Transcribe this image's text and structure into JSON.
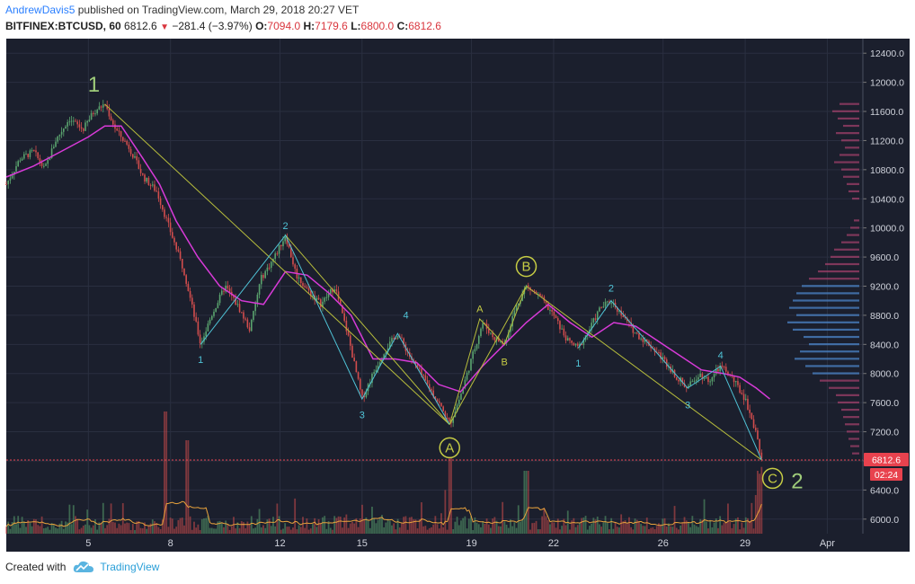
{
  "header": {
    "author": "AndrewDavis5",
    "published_text": "published on TradingView.com, March 29, 2018 20:27 VET",
    "symbol": "BITFINEX:BTCUSD, 60",
    "last": "6812.6",
    "change": "−281.4 (−3.97%)",
    "o_label": "O:",
    "o_value": "7094.0",
    "h_label": "H:",
    "h_value": "7179.6",
    "l_label": "L:",
    "l_value": "6800.0",
    "c_label": "C:",
    "c_value": "6812.6"
  },
  "footer": {
    "created_with": "Created with",
    "brand": "TradingView"
  },
  "colors": {
    "background": "#1b1f2d",
    "grid": "#2a2f40",
    "up": "#5aa36e",
    "down": "#d24d4d",
    "ma": "#d83ad8",
    "wave_cyan": "#4fc3d6",
    "trend_olive": "#b7bd3c",
    "label_green": "#9fcc7a",
    "price_badge": "#e8424e"
  },
  "chart_data": {
    "type": "line",
    "title": "",
    "y_range": [
      5800,
      12600
    ],
    "y_ticks": [
      "12400.0",
      "12000.0",
      "11600.0",
      "11200.0",
      "10800.0",
      "10400.0",
      "10000.0",
      "9600.0",
      "9200.0",
      "8800.0",
      "8400.0",
      "8000.0",
      "7600.0",
      "7200.0",
      "6800.0",
      "6400.0",
      "6000.0"
    ],
    "y_tick_values": [
      12400,
      12000,
      11600,
      11200,
      10800,
      10400,
      10000,
      9600,
      9200,
      8800,
      8400,
      8000,
      7600,
      7200,
      6800,
      6400,
      6000
    ],
    "x_range": [
      2.0,
      33.3
    ],
    "x_ticks": [
      {
        "label": "5",
        "value": 5
      },
      {
        "label": "8",
        "value": 8
      },
      {
        "label": "12",
        "value": 12
      },
      {
        "label": "15",
        "value": 15
      },
      {
        "label": "19",
        "value": 19
      },
      {
        "label": "22",
        "value": 22
      },
      {
        "label": "26",
        "value": 26
      },
      {
        "label": "29",
        "value": 29
      },
      {
        "label": "Apr",
        "value": 32
      }
    ],
    "last_price": 6812.6,
    "last_price_label": "6812.6",
    "countdown_label": "02:24",
    "price_path": [
      [
        2.0,
        10600
      ],
      [
        2.5,
        10950
      ],
      [
        3.0,
        11050
      ],
      [
        3.4,
        10800
      ],
      [
        3.8,
        11200
      ],
      [
        4.3,
        11500
      ],
      [
        4.8,
        11350
      ],
      [
        5.2,
        11600
      ],
      [
        5.6,
        11700
      ],
      [
        6.0,
        11350
      ],
      [
        6.5,
        11100
      ],
      [
        7.0,
        10700
      ],
      [
        7.5,
        10500
      ],
      [
        8.0,
        9950
      ],
      [
        8.5,
        9400
      ],
      [
        9.1,
        8400
      ],
      [
        9.5,
        8800
      ],
      [
        10.0,
        9200
      ],
      [
        10.5,
        8900
      ],
      [
        10.9,
        8600
      ],
      [
        11.3,
        9300
      ],
      [
        11.8,
        9600
      ],
      [
        12.2,
        9900
      ],
      [
        12.6,
        9350
      ],
      [
        13.0,
        9150
      ],
      [
        13.5,
        8950
      ],
      [
        14.0,
        9200
      ],
      [
        14.5,
        8500
      ],
      [
        15.0,
        7650
      ],
      [
        15.4,
        8000
      ],
      [
        15.8,
        8300
      ],
      [
        16.3,
        8550
      ],
      [
        16.8,
        8200
      ],
      [
        17.3,
        7900
      ],
      [
        17.8,
        7600
      ],
      [
        18.2,
        7300
      ],
      [
        18.6,
        7700
      ],
      [
        19.0,
        8200
      ],
      [
        19.4,
        8700
      ],
      [
        19.8,
        8500
      ],
      [
        20.2,
        8400
      ],
      [
        20.6,
        8900
      ],
      [
        21.0,
        9200
      ],
      [
        21.5,
        9050
      ],
      [
        22.0,
        8800
      ],
      [
        22.5,
        8450
      ],
      [
        22.9,
        8350
      ],
      [
        23.3,
        8600
      ],
      [
        23.7,
        8900
      ],
      [
        24.1,
        9000
      ],
      [
        24.5,
        8800
      ],
      [
        25.0,
        8550
      ],
      [
        25.5,
        8400
      ],
      [
        26.0,
        8200
      ],
      [
        26.5,
        7950
      ],
      [
        26.9,
        7800
      ],
      [
        27.3,
        8000
      ],
      [
        27.7,
        7900
      ],
      [
        28.1,
        8100
      ],
      [
        28.5,
        7950
      ],
      [
        29.0,
        7650
      ],
      [
        29.4,
        7200
      ],
      [
        29.6,
        6812.6
      ]
    ],
    "ma_path": [
      [
        2.0,
        10700
      ],
      [
        3.0,
        10850
      ],
      [
        4.0,
        11050
      ],
      [
        5.0,
        11250
      ],
      [
        5.6,
        11400
      ],
      [
        6.2,
        11400
      ],
      [
        7.0,
        10950
      ],
      [
        7.6,
        10600
      ],
      [
        8.2,
        10100
      ],
      [
        9.0,
        9600
      ],
      [
        9.8,
        9200
      ],
      [
        10.6,
        9000
      ],
      [
        11.4,
        8950
      ],
      [
        12.2,
        9400
      ],
      [
        13.0,
        9350
      ],
      [
        13.8,
        9100
      ],
      [
        14.6,
        8800
      ],
      [
        15.4,
        8200
      ],
      [
        16.2,
        8200
      ],
      [
        17.0,
        8150
      ],
      [
        17.8,
        7850
      ],
      [
        18.6,
        7750
      ],
      [
        19.4,
        8100
      ],
      [
        20.2,
        8400
      ],
      [
        21.0,
        8700
      ],
      [
        21.8,
        8950
      ],
      [
        22.6,
        8700
      ],
      [
        23.4,
        8500
      ],
      [
        24.2,
        8700
      ],
      [
        25.0,
        8650
      ],
      [
        25.8,
        8450
      ],
      [
        26.6,
        8250
      ],
      [
        27.4,
        8050
      ],
      [
        28.2,
        8000
      ],
      [
        28.8,
        7950
      ],
      [
        29.4,
        7800
      ],
      [
        29.9,
        7650
      ]
    ],
    "wave_lines": [
      [
        [
          9.1,
          8400
        ],
        [
          12.2,
          9900
        ],
        [
          15.0,
          7650
        ],
        [
          16.3,
          8550
        ],
        [
          18.2,
          7300
        ]
      ],
      [
        [
          22.9,
          8350
        ],
        [
          24.1,
          9000
        ],
        [
          26.9,
          7800
        ],
        [
          28.1,
          8100
        ],
        [
          29.6,
          6812.6
        ]
      ],
      [
        [
          18.2,
          7300
        ],
        [
          19.3,
          8750
        ],
        [
          20.2,
          8400
        ],
        [
          21.0,
          9200
        ]
      ]
    ],
    "trend_lines": [
      [
        [
          5.6,
          11700
        ],
        [
          18.2,
          7300
        ]
      ],
      [
        [
          12.2,
          9900
        ],
        [
          18.2,
          7300
        ]
      ],
      [
        [
          21.0,
          9200
        ],
        [
          29.6,
          6812.6
        ]
      ],
      [
        [
          18.2,
          7300
        ],
        [
          21.0,
          9200
        ]
      ]
    ],
    "annotations": [
      {
        "text": "1",
        "x": 5.2,
        "y": 11950,
        "style": "big"
      },
      {
        "text": "2",
        "x": 30.9,
        "y": 6500,
        "style": "big"
      },
      {
        "text": "1",
        "x": 9.1,
        "y": 8180,
        "style": "wave"
      },
      {
        "text": "2",
        "x": 12.2,
        "y": 10020,
        "style": "wave"
      },
      {
        "text": "3",
        "x": 15.0,
        "y": 7420,
        "style": "wave"
      },
      {
        "text": "4",
        "x": 16.6,
        "y": 8790,
        "style": "wave"
      },
      {
        "text": "1",
        "x": 22.9,
        "y": 8130,
        "style": "wave"
      },
      {
        "text": "2",
        "x": 24.1,
        "y": 9160,
        "style": "wave"
      },
      {
        "text": "3",
        "x": 26.9,
        "y": 7560,
        "style": "wave"
      },
      {
        "text": "4",
        "x": 28.1,
        "y": 8240,
        "style": "wave"
      },
      {
        "text": "A",
        "x": 19.3,
        "y": 8880,
        "style": "abc"
      },
      {
        "text": "B",
        "x": 20.2,
        "y": 8150,
        "style": "abc"
      },
      {
        "text": "A",
        "x": 18.2,
        "y": 6980,
        "style": "circle"
      },
      {
        "text": "B",
        "x": 21.0,
        "y": 9470,
        "style": "circle"
      },
      {
        "text": "C",
        "x": 30.0,
        "y": 6560,
        "style": "circle"
      }
    ],
    "volume_profile": [
      [
        11700,
        22
      ],
      [
        11600,
        30
      ],
      [
        11500,
        24
      ],
      [
        11400,
        18
      ],
      [
        11300,
        26
      ],
      [
        11200,
        20
      ],
      [
        11100,
        16
      ],
      [
        11000,
        22
      ],
      [
        10900,
        28
      ],
      [
        10800,
        20
      ],
      [
        10700,
        18
      ],
      [
        10600,
        14
      ],
      [
        10500,
        12
      ],
      [
        10400,
        8
      ],
      [
        10100,
        6
      ],
      [
        10000,
        10
      ],
      [
        9900,
        14
      ],
      [
        9800,
        20
      ],
      [
        9700,
        28
      ],
      [
        9600,
        32
      ],
      [
        9500,
        38
      ],
      [
        9400,
        46
      ],
      [
        9300,
        56
      ],
      [
        9200,
        64
      ],
      [
        9100,
        70
      ],
      [
        9000,
        74
      ],
      [
        8900,
        78
      ],
      [
        8800,
        70
      ],
      [
        8700,
        80
      ],
      [
        8600,
        74
      ],
      [
        8500,
        62
      ],
      [
        8400,
        56
      ],
      [
        8300,
        66
      ],
      [
        8200,
        72
      ],
      [
        8100,
        60
      ],
      [
        8000,
        52
      ],
      [
        7900,
        44
      ],
      [
        7800,
        34
      ],
      [
        7700,
        26
      ],
      [
        7600,
        24
      ],
      [
        7500,
        20
      ],
      [
        7400,
        18
      ],
      [
        7300,
        16
      ],
      [
        7200,
        14
      ],
      [
        7100,
        12
      ],
      [
        7000,
        10
      ],
      [
        6900,
        8
      ]
    ]
  }
}
